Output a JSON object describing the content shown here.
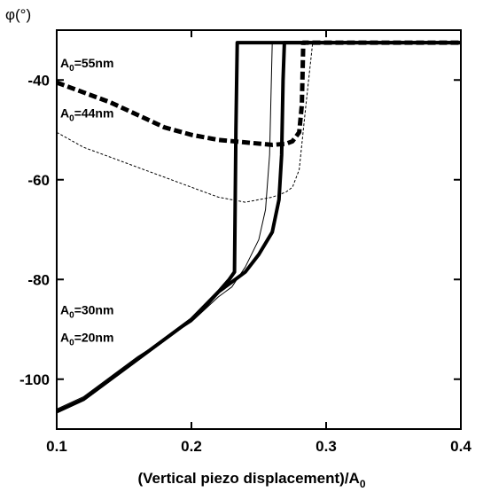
{
  "chart_data": {
    "type": "line",
    "ylabel": "φ(°)",
    "xlabel": "(Vertical piezo displacement)/A",
    "xlabel_sub": "0",
    "xlim": [
      0.1,
      0.4
    ],
    "ylim": [
      -110,
      -30
    ],
    "x_ticks": [
      0.1,
      0.2,
      0.3,
      0.4
    ],
    "x_tick_labels": [
      "0.1",
      "0.2",
      "0.3",
      "0.4"
    ],
    "y_ticks": [
      -40,
      -60,
      -80,
      -100
    ],
    "y_tick_labels": [
      "-40",
      "-60",
      "-80",
      "-100"
    ],
    "grid": false,
    "annotations": [
      {
        "prefix": "A",
        "sub": "0",
        "suffix": "=55nm",
        "x": 0.1,
        "y": -37.5
      },
      {
        "prefix": "A",
        "sub": "0",
        "suffix": "=44nm",
        "x": 0.1,
        "y": -47.5
      },
      {
        "prefix": "A",
        "sub": "0",
        "suffix": "=30nm",
        "x": 0.1,
        "y": -87.0
      },
      {
        "prefix": "A",
        "sub": "0",
        "suffix": "=20nm",
        "x": 0.1,
        "y": -92.5
      }
    ],
    "series": [
      {
        "style": "thick-dashed",
        "x": [
          0.1,
          0.12,
          0.14,
          0.16,
          0.18,
          0.2,
          0.22,
          0.24,
          0.26,
          0.27,
          0.275,
          0.28,
          0.282,
          0.283,
          0.285,
          0.3,
          0.35,
          0.4
        ],
        "y": [
          -40.5,
          -42.5,
          -44.5,
          -47.0,
          -49.5,
          -51.0,
          -52.0,
          -52.5,
          -53.0,
          -52.8,
          -52.3,
          -50.5,
          -45.0,
          -32.5,
          -32.5,
          -32.5,
          -32.5,
          -32.5
        ]
      },
      {
        "style": "thin-dashed",
        "x": [
          0.1,
          0.12,
          0.14,
          0.16,
          0.18,
          0.2,
          0.22,
          0.24,
          0.26,
          0.27,
          0.275,
          0.28,
          0.285,
          0.29,
          0.3,
          0.35,
          0.4
        ],
        "y": [
          -50.5,
          -53.5,
          -55.5,
          -57.5,
          -59.5,
          -61.5,
          -63.5,
          -64.5,
          -63.5,
          -62.5,
          -61.5,
          -58.0,
          -45.0,
          -32.5,
          -32.5,
          -32.5,
          -32.5
        ]
      },
      {
        "style": "thin-solid",
        "x": [
          0.1,
          0.12,
          0.14,
          0.16,
          0.18,
          0.2,
          0.21,
          0.22,
          0.23,
          0.24,
          0.25,
          0.255,
          0.258,
          0.26,
          0.3,
          0.35,
          0.4
        ],
        "y": [
          -106.0,
          -103.5,
          -99.5,
          -95.5,
          -92.0,
          -88.5,
          -86.0,
          -83.5,
          -81.5,
          -77.5,
          -72.0,
          -66.0,
          -55.0,
          -32.5,
          -32.5,
          -32.5,
          -32.5
        ]
      },
      {
        "style": "thick-solid-a",
        "x": [
          0.1,
          0.12,
          0.14,
          0.16,
          0.18,
          0.2,
          0.21,
          0.22,
          0.228,
          0.232,
          0.233,
          0.234,
          0.3,
          0.35,
          0.4
        ],
        "y": [
          -106.5,
          -104.0,
          -100.0,
          -96.0,
          -92.0,
          -88.0,
          -85.5,
          -82.5,
          -80.0,
          -78.5,
          -50.0,
          -32.5,
          -32.5,
          -32.5,
          -32.5
        ]
      },
      {
        "style": "thick-solid-b",
        "x": [
          0.1,
          0.12,
          0.14,
          0.16,
          0.18,
          0.2,
          0.22,
          0.23,
          0.24,
          0.25,
          0.26,
          0.265,
          0.267,
          0.268,
          0.269,
          0.3,
          0.35,
          0.4
        ],
        "y": [
          -106.5,
          -104.0,
          -100.0,
          -96.0,
          -92.0,
          -88.0,
          -82.5,
          -80.5,
          -78.5,
          -75.0,
          -70.5,
          -64.0,
          -55.0,
          -40.0,
          -32.5,
          -32.5,
          -32.5,
          -32.5
        ]
      }
    ]
  }
}
